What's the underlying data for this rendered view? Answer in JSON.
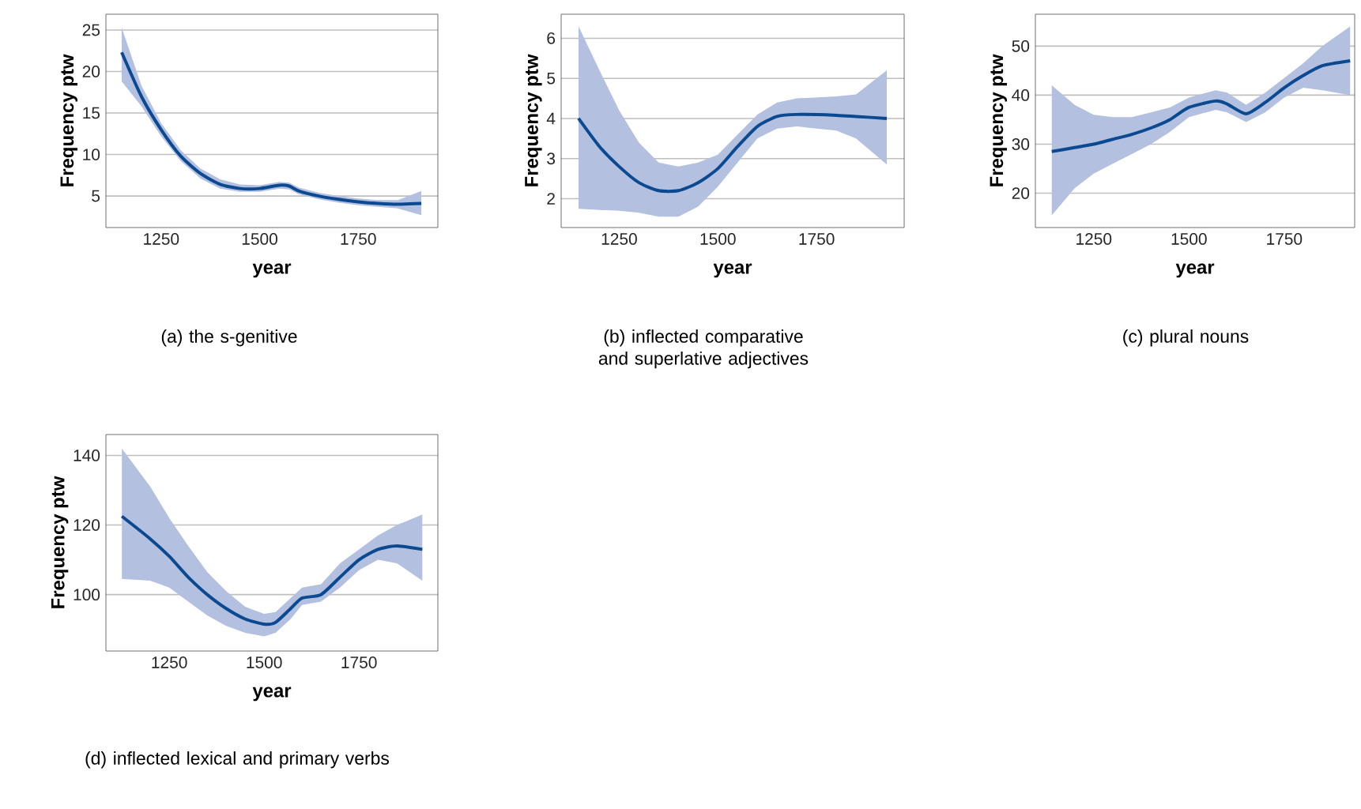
{
  "chart_data": [
    {
      "type": "line",
      "xlabel": "year",
      "ylabel": "Frequency ptw",
      "annotations": [
        "(a) the s-genitive"
      ],
      "xlim": [
        1110,
        1952
      ],
      "xticks": [
        1250,
        1500,
        1750
      ],
      "ylim": [
        1.2,
        26.9
      ],
      "yticks": [
        5,
        10,
        15,
        20,
        25
      ],
      "grid": "y",
      "series": [
        {
          "color": "#0b4a91",
          "x": [
            1150,
            1200,
            1250,
            1300,
            1350,
            1400,
            1450,
            1500,
            1550,
            1575,
            1600,
            1650,
            1700,
            1750,
            1800,
            1850,
            1910
          ],
          "values": [
            22.3,
            17.0,
            13.0,
            9.8,
            7.7,
            6.4,
            5.9,
            5.9,
            6.3,
            6.2,
            5.6,
            5.0,
            4.6,
            4.3,
            4.1,
            4.0,
            4.1
          ],
          "lower": [
            18.8,
            15.8,
            12.2,
            9.2,
            7.1,
            5.9,
            5.5,
            5.5,
            5.9,
            5.8,
            5.2,
            4.6,
            4.2,
            3.9,
            3.7,
            3.5,
            2.7
          ],
          "upper": [
            25.3,
            18.3,
            13.8,
            10.5,
            8.3,
            7.0,
            6.4,
            6.3,
            6.7,
            6.6,
            6.0,
            5.4,
            5.0,
            4.7,
            4.5,
            4.5,
            5.6
          ]
        }
      ]
    },
    {
      "type": "line",
      "xlabel": "year",
      "ylabel": "Frequency ptw",
      "annotations": [
        "(b) inflected comparative and superlative adjectives"
      ],
      "xlim": [
        1103,
        1972
      ],
      "xticks": [
        1250,
        1500,
        1750
      ],
      "ylim": [
        1.28,
        6.6
      ],
      "yticks": [
        2,
        3,
        4,
        5,
        6
      ],
      "grid": "y",
      "series": [
        {
          "color": "#0b4a91",
          "x": [
            1147,
            1200,
            1250,
            1300,
            1350,
            1400,
            1450,
            1500,
            1550,
            1600,
            1650,
            1700,
            1800,
            1850,
            1928
          ],
          "values": [
            4.0,
            3.3,
            2.8,
            2.4,
            2.2,
            2.2,
            2.4,
            2.75,
            3.3,
            3.8,
            4.05,
            4.1,
            4.08,
            4.05,
            4.0
          ],
          "lower": [
            1.75,
            1.72,
            1.7,
            1.65,
            1.55,
            1.55,
            1.8,
            2.3,
            2.9,
            3.5,
            3.75,
            3.8,
            3.7,
            3.5,
            2.85
          ],
          "upper": [
            6.3,
            5.2,
            4.2,
            3.4,
            2.9,
            2.8,
            2.9,
            3.1,
            3.6,
            4.1,
            4.4,
            4.5,
            4.55,
            4.6,
            5.2
          ]
        }
      ]
    },
    {
      "type": "line",
      "xlabel": "year",
      "ylabel": "Frequency ptw",
      "annotations": [
        "(c) plural nouns"
      ],
      "xlim": [
        1097,
        1935
      ],
      "xticks": [
        1250,
        1500,
        1750
      ],
      "ylim": [
        13.0,
        56.5
      ],
      "yticks": [
        20,
        30,
        40,
        50
      ],
      "grid": "y",
      "series": [
        {
          "color": "#0b4a91",
          "x": [
            1140,
            1200,
            1250,
            1300,
            1350,
            1400,
            1450,
            1500,
            1570,
            1600,
            1650,
            1700,
            1750,
            1800,
            1850,
            1923
          ],
          "values": [
            28.5,
            29.3,
            30.0,
            31.0,
            32.0,
            33.3,
            35.0,
            37.5,
            38.8,
            38.2,
            36.2,
            38.5,
            41.5,
            44.0,
            46.0,
            47.0
          ],
          "lower": [
            15.5,
            21.0,
            24.0,
            26.0,
            28.0,
            30.0,
            32.5,
            35.5,
            37.0,
            36.5,
            34.5,
            36.5,
            39.5,
            41.5,
            41.0,
            40.0
          ],
          "upper": [
            42.0,
            38.0,
            36.0,
            35.5,
            35.5,
            36.5,
            37.5,
            39.5,
            41.0,
            40.5,
            38.0,
            40.5,
            43.5,
            46.5,
            50.0,
            54.0
          ]
        }
      ]
    },
    {
      "type": "line",
      "xlabel": "year",
      "ylabel": "Frequency ptw",
      "annotations": [
        "(d) inflected lexical and primary verbs"
      ],
      "xlim": [
        1083,
        1958
      ],
      "xticks": [
        1250,
        1500,
        1750
      ],
      "ylim": [
        83.8,
        146
      ],
      "yticks": [
        100,
        120,
        140
      ],
      "grid": "y",
      "series": [
        {
          "color": "#0b4a91",
          "x": [
            1125,
            1200,
            1250,
            1300,
            1350,
            1400,
            1450,
            1500,
            1530,
            1570,
            1600,
            1650,
            1700,
            1750,
            1800,
            1850,
            1917
          ],
          "values": [
            122.5,
            116.0,
            111.0,
            105.0,
            100.0,
            96.0,
            93.0,
            91.5,
            92.0,
            96.0,
            99.0,
            100.0,
            105.0,
            110.0,
            113.0,
            114.0,
            113.0
          ],
          "lower": [
            104.5,
            104.0,
            102.0,
            98.0,
            94.0,
            91.0,
            89.0,
            88.0,
            89.0,
            93.0,
            97.0,
            98.0,
            102.0,
            107.0,
            110.0,
            109.0,
            104.0
          ],
          "upper": [
            142.0,
            131.0,
            122.0,
            114.0,
            106.5,
            101.0,
            96.5,
            94.5,
            95.0,
            99.0,
            102.0,
            103.0,
            109.0,
            113.0,
            117.0,
            120.0,
            123.0
          ]
        }
      ]
    }
  ]
}
